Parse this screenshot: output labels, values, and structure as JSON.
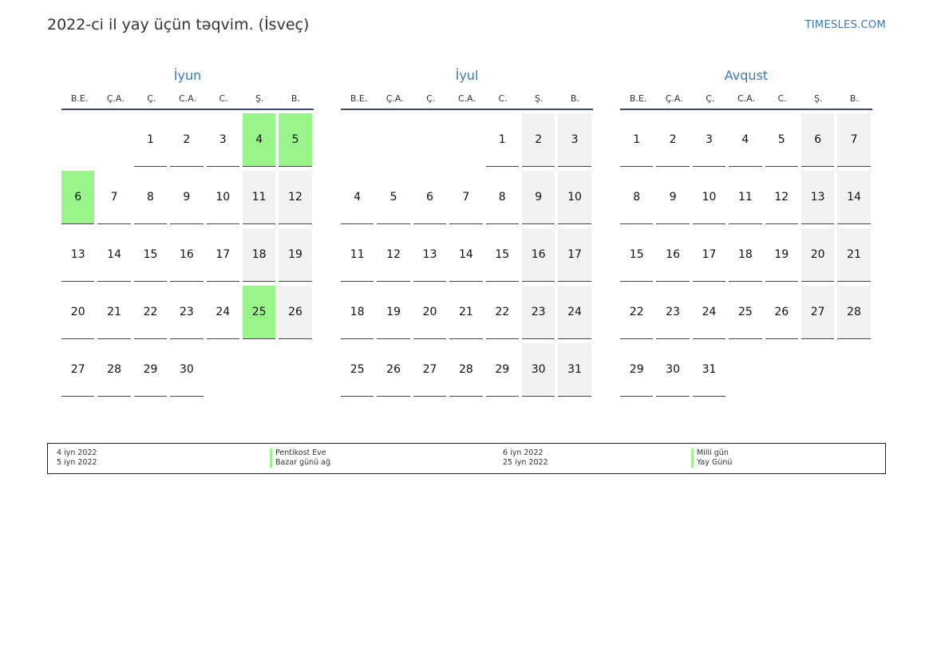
{
  "header": {
    "title": "2022-ci il yay üçün təqvim. (İsveç)",
    "brand": "TIMESLES.COM"
  },
  "weekdays": [
    "B.E.",
    "Ç.A.",
    "Ç.",
    "C.A.",
    "C.",
    "Ş.",
    "B."
  ],
  "colors": {
    "holiday": "#99f58a",
    "weekend": "#f2f2f2",
    "accent": "#3a7ab8"
  },
  "months": [
    {
      "name": "İyun",
      "weeks": [
        [
          "",
          "",
          "1",
          "2",
          "3",
          "4",
          "5"
        ],
        [
          "6",
          "7",
          "8",
          "9",
          "10",
          "11",
          "12"
        ],
        [
          "13",
          "14",
          "15",
          "16",
          "17",
          "18",
          "19"
        ],
        [
          "20",
          "21",
          "22",
          "23",
          "24",
          "25",
          "26"
        ],
        [
          "27",
          "28",
          "29",
          "30",
          "",
          "",
          ""
        ]
      ],
      "holidays": [
        "4",
        "5",
        "6",
        "25"
      ]
    },
    {
      "name": "İyul",
      "weeks": [
        [
          "",
          "",
          "",
          "",
          "1",
          "2",
          "3"
        ],
        [
          "4",
          "5",
          "6",
          "7",
          "8",
          "9",
          "10"
        ],
        [
          "11",
          "12",
          "13",
          "14",
          "15",
          "16",
          "17"
        ],
        [
          "18",
          "19",
          "20",
          "21",
          "22",
          "23",
          "24"
        ],
        [
          "25",
          "26",
          "27",
          "28",
          "29",
          "30",
          "31"
        ]
      ],
      "holidays": []
    },
    {
      "name": "Avqust",
      "weeks": [
        [
          "1",
          "2",
          "3",
          "4",
          "5",
          "6",
          "7"
        ],
        [
          "8",
          "9",
          "10",
          "11",
          "12",
          "13",
          "14"
        ],
        [
          "15",
          "16",
          "17",
          "18",
          "19",
          "20",
          "21"
        ],
        [
          "22",
          "23",
          "24",
          "25",
          "26",
          "27",
          "28"
        ],
        [
          "29",
          "30",
          "31",
          "",
          "",
          "",
          ""
        ]
      ],
      "holidays": []
    }
  ],
  "legend": {
    "left_dates": [
      "4 iyn 2022",
      "5 iyn 2022"
    ],
    "left_names": [
      "Pentikost Eve",
      "Bazar günü ağ"
    ],
    "right_dates": [
      "6 iyn 2022",
      "25 iyn 2022"
    ],
    "right_names": [
      "Milli gün",
      "Yay Günü"
    ]
  }
}
